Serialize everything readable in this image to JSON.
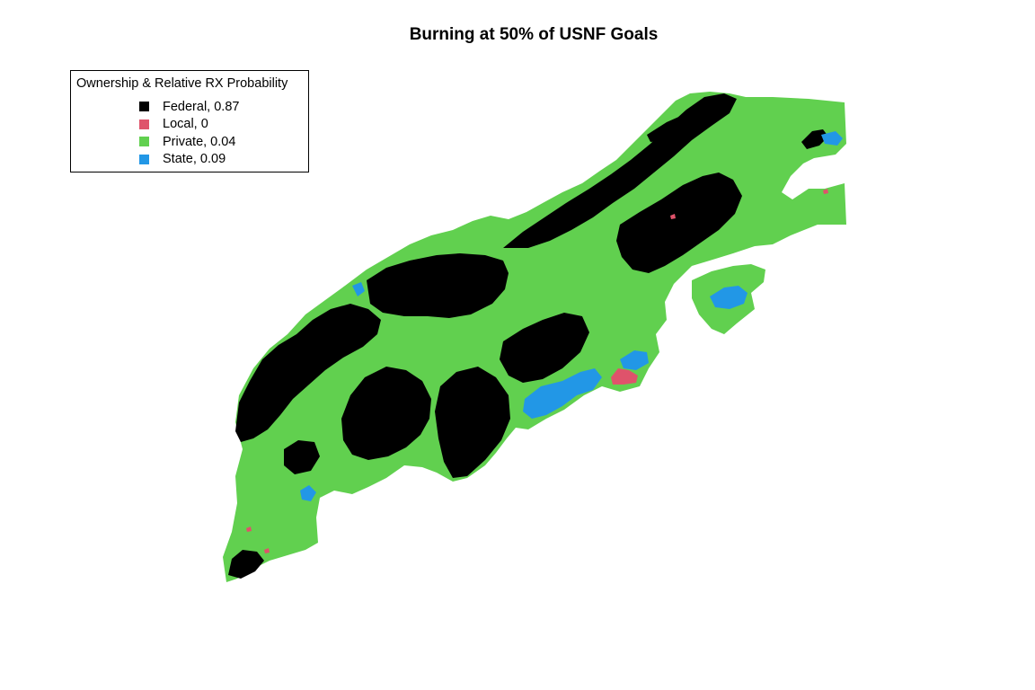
{
  "title": "Burning at 50% of USNF Goals",
  "legend": {
    "title": "Ownership & Relative RX Probability",
    "items": [
      {
        "label": "Federal, 0.87",
        "owner": "Federal",
        "probability": 0.87,
        "color": "#000000"
      },
      {
        "label": "Local, 0",
        "owner": "Local",
        "probability": 0,
        "color": "#df536b"
      },
      {
        "label": "Private, 0.04",
        "owner": "Private",
        "probability": 0.04,
        "color": "#61d04f"
      },
      {
        "label": "State, 0.09",
        "owner": "State",
        "probability": 0.09,
        "color": "#2297e6"
      }
    ]
  }
}
